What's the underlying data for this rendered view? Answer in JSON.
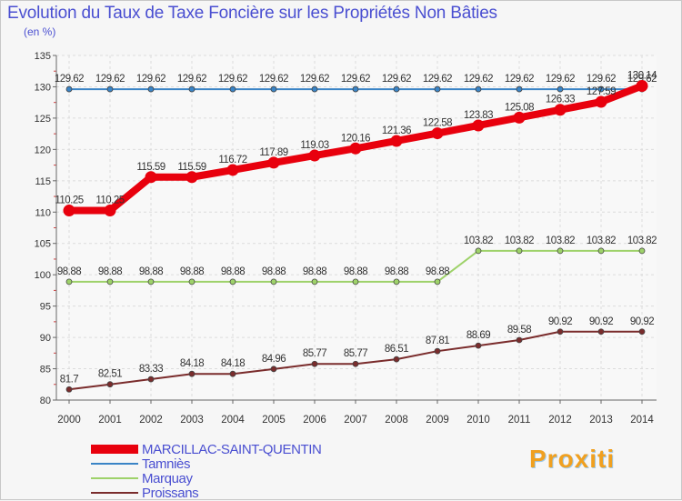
{
  "chart_data": {
    "type": "line",
    "title": "Evolution du Taux de Taxe Foncière sur les Propriétés Non Bâties",
    "ylabel": "(en %)",
    "xlabel": "",
    "ylim": [
      80,
      135
    ],
    "yticks": [
      "80",
      "85",
      "90",
      "95",
      "100",
      "105",
      "110",
      "115",
      "120",
      "125",
      "130",
      "135"
    ],
    "categories": [
      "2000",
      "2001",
      "2002",
      "2003",
      "2004",
      "2005",
      "2006",
      "2007",
      "2008",
      "2009",
      "2010",
      "2011",
      "2012",
      "2013",
      "2014"
    ],
    "series": [
      {
        "name": "Tamniès",
        "color": "#3a84c6",
        "values": [
          129.62,
          129.62,
          129.62,
          129.62,
          129.62,
          129.62,
          129.62,
          129.62,
          129.62,
          129.62,
          129.62,
          129.62,
          129.62,
          129.62,
          129.62
        ],
        "labels": [
          "129.62",
          "129.62",
          "129.62",
          "129.62",
          "129.62",
          "129.62",
          "129.62",
          "129.62",
          "129.62",
          "129.62",
          "129.62",
          "129.62",
          "129.62",
          "129.62",
          "129.62"
        ]
      },
      {
        "name": "Marquay",
        "color": "#9ed26a",
        "values": [
          98.88,
          98.88,
          98.88,
          98.88,
          98.88,
          98.88,
          98.88,
          98.88,
          98.88,
          98.88,
          103.82,
          103.82,
          103.82,
          103.82,
          103.82
        ],
        "labels": [
          "98.88",
          "98.88",
          "98.88",
          "98.88",
          "98.88",
          "98.88",
          "98.88",
          "98.88",
          "98.88",
          "98.88",
          "103.82",
          "103.82",
          "103.82",
          "103.82",
          "103.82"
        ]
      },
      {
        "name": "Proissans",
        "color": "#7a2c2c",
        "values": [
          81.7,
          82.51,
          83.33,
          84.18,
          84.18,
          84.96,
          85.77,
          85.77,
          86.51,
          87.81,
          88.69,
          89.58,
          90.92,
          90.92,
          90.92
        ],
        "labels": [
          "81.7",
          "82.51",
          "83.33",
          "84.18",
          "84.18",
          "84.96",
          "85.77",
          "85.77",
          "86.51",
          "87.81",
          "88.69",
          "89.58",
          "90.92",
          "90.92",
          "90.92"
        ]
      },
      {
        "name": "MARCILLAC-SAINT-QUENTIN",
        "color": "#e8000d",
        "values": [
          110.25,
          110.25,
          115.59,
          115.59,
          116.72,
          117.89,
          119.03,
          120.16,
          121.36,
          122.58,
          123.83,
          125.08,
          126.33,
          127.59,
          130.14
        ],
        "labels": [
          "110.25",
          "110.25",
          "115.59",
          "115.59",
          "116.72",
          "117.89",
          "119.03",
          "120.16",
          "121.36",
          "122.58",
          "123.83",
          "125.08",
          "126.33",
          "127.59",
          "130.14"
        ]
      }
    ],
    "legend_order": [
      "MARCILLAC-SAINT-QUENTIN",
      "Tamniès",
      "Marquay",
      "Proissans"
    ],
    "legend_position": "bottom-left"
  },
  "legend": [
    {
      "label": "MARCILLAC-SAINT-QUENTIN",
      "color": "#e8000d"
    },
    {
      "label": "Tamniès",
      "color": "#3a84c6"
    },
    {
      "label": "Marquay",
      "color": "#9ed26a"
    },
    {
      "label": "Proissans",
      "color": "#7a2c2c"
    }
  ],
  "brand": "Proxiti"
}
